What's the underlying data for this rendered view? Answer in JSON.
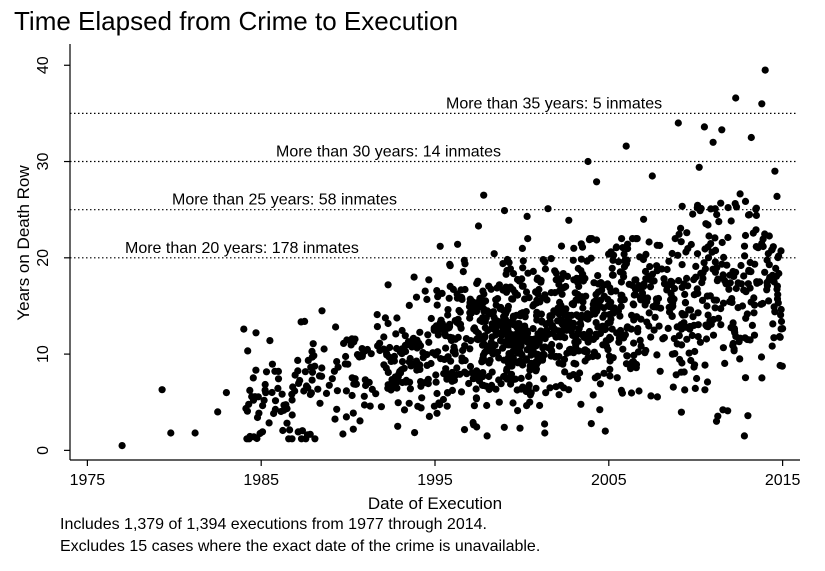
{
  "chart_data": {
    "type": "scatter",
    "title": "Time Elapsed from Crime to Execution",
    "xlabel": "Date of Execution",
    "ylabel": "Years on Death Row",
    "xlim": [
      1974,
      2016
    ],
    "ylim": [
      -1,
      42
    ],
    "xticks": [
      1975,
      1985,
      1995,
      2005,
      2015
    ],
    "yticks": [
      0,
      10,
      20,
      30,
      40
    ],
    "grid": false,
    "total_points": 1379,
    "reference_lines": [
      {
        "y": 20,
        "label": "More than 20 years: 178 inmates"
      },
      {
        "y": 25,
        "label": "More than 25 years: 58 inmates"
      },
      {
        "y": 30,
        "label": "More than 30 years: 14 inmates"
      },
      {
        "y": 35,
        "label": "More than 35 years: 5 inmates"
      }
    ],
    "labeled_points": [
      {
        "x": 1977.0,
        "y": 0.5
      },
      {
        "x": 1979.3,
        "y": 6.3
      },
      {
        "x": 1979.8,
        "y": 1.8
      },
      {
        "x": 1981.2,
        "y": 1.8
      },
      {
        "x": 1982.5,
        "y": 4.0
      },
      {
        "x": 1983.0,
        "y": 6.0
      },
      {
        "x": 1984.0,
        "y": 12.6
      },
      {
        "x": 1985.5,
        "y": 11.4
      },
      {
        "x": 1987.5,
        "y": 13.4
      },
      {
        "x": 1988.5,
        "y": 14.5
      },
      {
        "x": 1989.7,
        "y": 1.7
      },
      {
        "x": 1990.3,
        "y": 2.2
      },
      {
        "x": 1992.3,
        "y": 17.2
      },
      {
        "x": 1993.8,
        "y": 18.0
      },
      {
        "x": 1995.3,
        "y": 21.2
      },
      {
        "x": 1996.3,
        "y": 21.4
      },
      {
        "x": 1997.5,
        "y": 23.3
      },
      {
        "x": 1997.8,
        "y": 26.5
      },
      {
        "x": 1998.0,
        "y": 1.5
      },
      {
        "x": 1999.0,
        "y": 24.9
      },
      {
        "x": 2000.3,
        "y": 24.3
      },
      {
        "x": 2001.5,
        "y": 25.1
      },
      {
        "x": 2002.7,
        "y": 23.9
      },
      {
        "x": 2003.8,
        "y": 30.0
      },
      {
        "x": 2004.3,
        "y": 27.9
      },
      {
        "x": 2004.8,
        "y": 2.0
      },
      {
        "x": 2006.0,
        "y": 31.6
      },
      {
        "x": 2007.0,
        "y": 24.0
      },
      {
        "x": 2007.5,
        "y": 28.5
      },
      {
        "x": 2009.0,
        "y": 34.0
      },
      {
        "x": 2010.2,
        "y": 29.4
      },
      {
        "x": 2010.5,
        "y": 33.6
      },
      {
        "x": 2011.0,
        "y": 32.0
      },
      {
        "x": 2011.5,
        "y": 33.3
      },
      {
        "x": 2012.3,
        "y": 36.6
      },
      {
        "x": 2012.8,
        "y": 1.5
      },
      {
        "x": 2013.0,
        "y": 3.6
      },
      {
        "x": 2013.2,
        "y": 32.5
      },
      {
        "x": 2013.8,
        "y": 36.0
      },
      {
        "x": 2014.0,
        "y": 39.5
      }
    ]
  },
  "notes": [
    "Includes 1,379 of 1,394 executions from 1977 through 2014.",
    "Excludes 15 cases where the exact date of the crime is unavailable."
  ]
}
